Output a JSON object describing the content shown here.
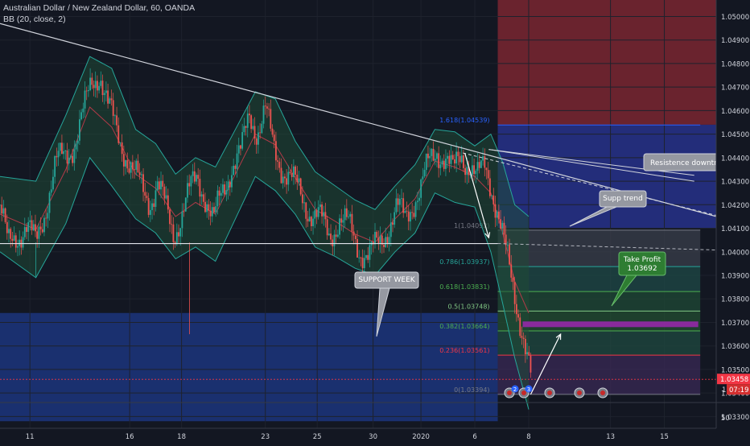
{
  "header": {
    "symbol_title": "Australian Dollar / New Zealand Dollar, 60, OANDA",
    "indicator": "BB (20, close, 2)"
  },
  "chart_data": {
    "type": "line",
    "title": "Australian Dollar / New Zealand Dollar, 60, OANDA",
    "instrument": "AUDNZD",
    "timeframe": "60",
    "source": "OANDA",
    "ylim": [
      1.0325,
      1.0507
    ],
    "grid": true,
    "y_ticks": [
      "1.05000",
      "1.04900",
      "1.04800",
      "1.04700",
      "1.04600",
      "1.04500",
      "1.04400",
      "1.04300",
      "1.04200",
      "1.04100",
      "1.04000",
      "1.03900",
      "1.03800",
      "1.03700",
      "1.03600",
      "1.03500",
      "1.03400",
      "1.03300"
    ],
    "x_ticks": [
      {
        "label": "11",
        "t": 0.2
      },
      {
        "label": "16",
        "t": 5.2
      },
      {
        "label": "18",
        "t": 7.8
      },
      {
        "label": "23",
        "t": 12.0
      },
      {
        "label": "25",
        "t": 14.6
      },
      {
        "label": "30",
        "t": 17.4
      },
      {
        "label": "2020",
        "t": 19.8
      },
      {
        "label": "6",
        "t": 22.5
      },
      {
        "label": "8",
        "t": 25.2
      },
      {
        "label": "13",
        "t": 29.3
      },
      {
        "label": "15",
        "t": 32.0
      }
    ],
    "xlim": [
      -1.3,
      34.6
    ],
    "price_series": {
      "name": "AUDNZD close (approx.)",
      "points": [
        [
          -1.3,
          1.042
        ],
        [
          -0.9,
          1.0402
        ],
        [
          -0.5,
          1.0407
        ],
        [
          0.0,
          1.0411
        ],
        [
          0.5,
          1.0403
        ],
        [
          1.0,
          1.042
        ],
        [
          1.5,
          1.0437
        ],
        [
          2.0,
          1.0441
        ],
        [
          2.5,
          1.0448
        ],
        [
          3.0,
          1.0462
        ],
        [
          3.3,
          1.0472
        ],
        [
          3.7,
          1.0477
        ],
        [
          4.1,
          1.0462
        ],
        [
          4.5,
          1.0452
        ],
        [
          5.0,
          1.0442
        ],
        [
          5.4,
          1.0433
        ],
        [
          5.8,
          1.0427
        ],
        [
          6.2,
          1.0422
        ],
        [
          6.6,
          1.0429
        ],
        [
          7.0,
          1.0418
        ],
        [
          7.4,
          1.0408
        ],
        [
          7.8,
          1.0416
        ],
        [
          8.2,
          1.0425
        ],
        [
          8.6,
          1.0432
        ],
        [
          9.0,
          1.0424
        ],
        [
          9.4,
          1.0412
        ],
        [
          9.8,
          1.0424
        ],
        [
          10.3,
          1.0437
        ],
        [
          10.8,
          1.0442
        ],
        [
          11.2,
          1.0458
        ],
        [
          11.6,
          1.0452
        ],
        [
          12.0,
          1.046
        ],
        [
          12.4,
          1.0444
        ],
        [
          12.8,
          1.0437
        ],
        [
          13.2,
          1.0432
        ],
        [
          13.7,
          1.0425
        ],
        [
          14.2,
          1.0418
        ],
        [
          14.7,
          1.0414
        ],
        [
          15.2,
          1.0407
        ],
        [
          15.7,
          1.0414
        ],
        [
          16.2,
          1.041
        ],
        [
          16.7,
          1.0402
        ],
        [
          17.2,
          1.0398
        ],
        [
          17.7,
          1.0403
        ],
        [
          18.2,
          1.0412
        ],
        [
          18.6,
          1.0418
        ],
        [
          19.0,
          1.0414
        ],
        [
          19.4,
          1.0422
        ],
        [
          19.8,
          1.0427
        ],
        [
          20.2,
          1.0437
        ],
        [
          20.6,
          1.0444
        ],
        [
          21.0,
          1.044
        ],
        [
          21.4,
          1.0433
        ],
        [
          21.8,
          1.0442
        ],
        [
          22.2,
          1.0438
        ],
        [
          22.6,
          1.043
        ],
        [
          23.0,
          1.0437
        ],
        [
          23.3,
          1.043
        ],
        [
          23.6,
          1.0418
        ],
        [
          23.9,
          1.0405
        ],
        [
          24.2,
          1.0394
        ],
        [
          24.5,
          1.0383
        ],
        [
          24.8,
          1.037
        ],
        [
          25.1,
          1.0355
        ],
        [
          25.3,
          1.03458
        ]
      ]
    },
    "bollinger_bands": {
      "name": "BB (20, close, 2)",
      "upper": [
        [
          -1.3,
          1.0432
        ],
        [
          0.5,
          1.043
        ],
        [
          2.0,
          1.0458
        ],
        [
          3.2,
          1.0483
        ],
        [
          4.3,
          1.0478
        ],
        [
          5.5,
          1.0452
        ],
        [
          6.5,
          1.0446
        ],
        [
          7.5,
          1.0433
        ],
        [
          8.5,
          1.044
        ],
        [
          9.5,
          1.0436
        ],
        [
          10.5,
          1.0452
        ],
        [
          11.5,
          1.0468
        ],
        [
          12.5,
          1.0465
        ],
        [
          13.5,
          1.0447
        ],
        [
          14.5,
          1.0434
        ],
        [
          15.5,
          1.0428
        ],
        [
          16.5,
          1.0422
        ],
        [
          17.5,
          1.0418
        ],
        [
          18.5,
          1.0428
        ],
        [
          19.5,
          1.0437
        ],
        [
          20.5,
          1.0452
        ],
        [
          21.5,
          1.0451
        ],
        [
          22.5,
          1.0445
        ],
        [
          23.3,
          1.045
        ],
        [
          23.9,
          1.0438
        ],
        [
          24.5,
          1.042
        ],
        [
          25.2,
          1.0415
        ]
      ],
      "lower": [
        [
          -1.3,
          1.04
        ],
        [
          0.5,
          1.0389
        ],
        [
          2.0,
          1.0412
        ],
        [
          3.2,
          1.044
        ],
        [
          4.3,
          1.0428
        ],
        [
          5.5,
          1.0414
        ],
        [
          6.5,
          1.0408
        ],
        [
          7.5,
          1.0397
        ],
        [
          8.5,
          1.0402
        ],
        [
          9.5,
          1.0396
        ],
        [
          10.5,
          1.0414
        ],
        [
          11.5,
          1.0432
        ],
        [
          12.5,
          1.0426
        ],
        [
          13.5,
          1.0416
        ],
        [
          14.5,
          1.0402
        ],
        [
          15.5,
          1.0398
        ],
        [
          16.5,
          1.0393
        ],
        [
          17.5,
          1.039
        ],
        [
          18.5,
          1.04
        ],
        [
          19.5,
          1.0408
        ],
        [
          20.5,
          1.0425
        ],
        [
          21.5,
          1.0421
        ],
        [
          22.5,
          1.0419
        ],
        [
          23.3,
          1.04
        ],
        [
          23.9,
          1.0378
        ],
        [
          24.5,
          1.0355
        ],
        [
          25.2,
          1.0333
        ]
      ]
    },
    "current_price": {
      "label": "1.03458",
      "countdown": "07:19",
      "value": 1.03458
    },
    "fibonacci": [
      {
        "label": "1.618(1.04539)",
        "value": 1.04539,
        "color": "#2962ff"
      },
      {
        "label": "1(1.04092)",
        "value": 1.04092,
        "color": "#787b86"
      },
      {
        "label": "0.786(1.03937)",
        "value": 1.03937,
        "color": "#26a69a"
      },
      {
        "label": "0.618(1.03831)",
        "value": 1.03831,
        "color": "#4caf50"
      },
      {
        "label": "0.5(1.03748)",
        "value": 1.03748,
        "color": "#81c784"
      },
      {
        "label": "0.382(1.03664)",
        "value": 1.03664,
        "color": "#4caf50"
      },
      {
        "label": "0.236(1.03561)",
        "value": 1.03561,
        "color": "#f23645"
      },
      {
        "label": "0(1.03394)",
        "value": 1.03394,
        "color": "#787b86"
      }
    ],
    "zones": [
      {
        "name": "support week",
        "from": 1.0328,
        "to": 1.0374,
        "color": "#1e3a8a"
      },
      {
        "name": "red zone",
        "from": 1.0454,
        "to": 1.0507,
        "color": "#7a2630"
      },
      {
        "name": "blue zone",
        "from": 1.041,
        "to": 1.0454,
        "color": "#27318a"
      }
    ],
    "take_profit_value": 1.03692,
    "annotations": [
      {
        "id": "resistance",
        "text": "Resistence downtrend"
      },
      {
        "id": "supp_trend",
        "text": "Supp trend"
      },
      {
        "id": "support_week",
        "text": "SUPPORT WEEK"
      },
      {
        "id": "take_profit",
        "text": "Take Profit\n1.03692"
      }
    ],
    "extra_axis_label": "50",
    "event_markers": [
      "2",
      "3"
    ]
  },
  "colors": {
    "background": "#131722",
    "grid": "#1e222d",
    "axis_text": "#d1d4dc",
    "bull_candle": "#26a69a",
    "bear_candle": "#ef5350",
    "bb_fill": "#1f4a36",
    "bb_line": "#26a69a",
    "price_tag": "#f23645",
    "take_profit_box": "#2e7d32",
    "annotation_box": "#787b86"
  }
}
